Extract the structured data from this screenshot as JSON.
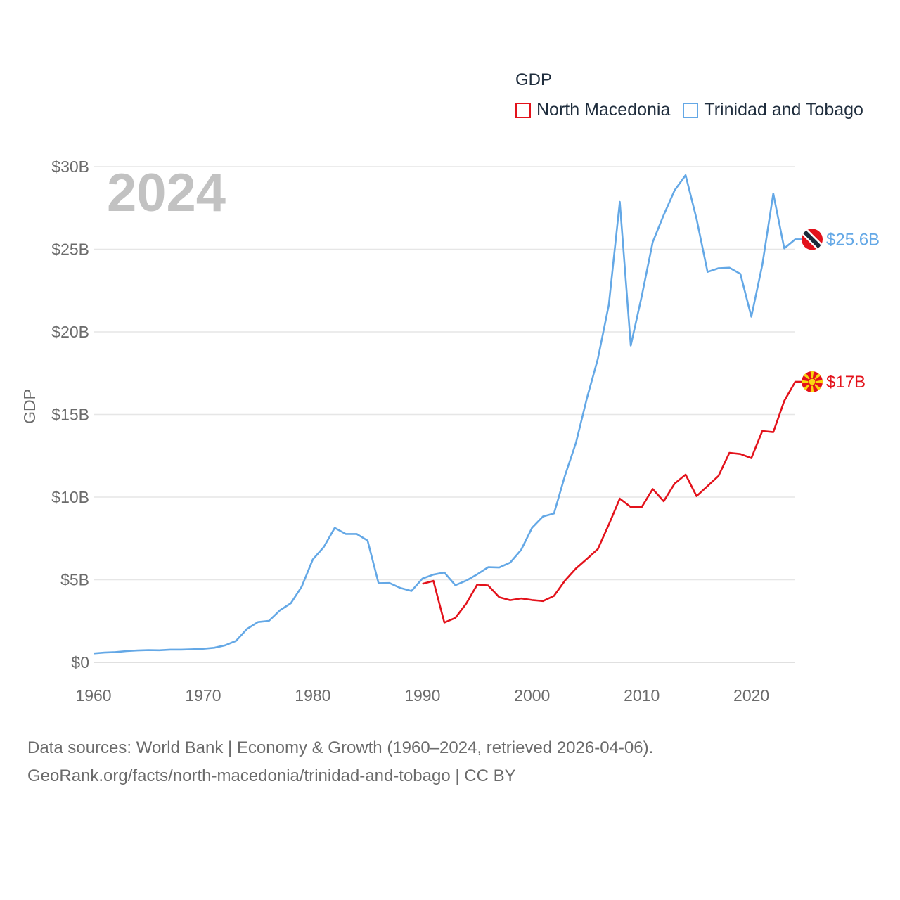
{
  "legend": {
    "title": "GDP",
    "items": [
      {
        "label": "North Macedonia",
        "color": "#e3121b"
      },
      {
        "label": "Trinidad and Tobago",
        "color": "#64a8e6"
      }
    ]
  },
  "sources": {
    "line1": "Data sources: World Bank | Economy & Growth (1960–2024, retrieved 2026-04-06).",
    "line2": "GeoRank.org/facts/north-macedonia/trinidad-and-tobago | CC BY"
  },
  "chart_data": {
    "type": "line",
    "title": "GDP",
    "year_label": "2024",
    "ylabel": "GDP",
    "xlabel": "",
    "xlim": [
      1960,
      2024
    ],
    "ylim": [
      0,
      30
    ],
    "y_unit": "billion USD",
    "x_ticks": [
      "1960",
      "1970",
      "1980",
      "1990",
      "2000",
      "2010",
      "2020"
    ],
    "y_ticks": [
      {
        "value": 0,
        "label": "$0"
      },
      {
        "value": 5,
        "label": "$5B"
      },
      {
        "value": 10,
        "label": "$10B"
      },
      {
        "value": 15,
        "label": "$15B"
      },
      {
        "value": 20,
        "label": "$20B"
      },
      {
        "value": 25,
        "label": "$25B"
      },
      {
        "value": 30,
        "label": "$30B"
      }
    ],
    "grid": true,
    "legend_position": "top-right",
    "series": [
      {
        "name": "Trinidad and Tobago",
        "color": "#64a8e6",
        "end_label": "$25.6B",
        "flag": "trinidad-and-tobago-flag-icon",
        "x": [
          1960,
          1961,
          1962,
          1963,
          1964,
          1965,
          1966,
          1967,
          1968,
          1969,
          1970,
          1971,
          1972,
          1973,
          1974,
          1975,
          1976,
          1977,
          1978,
          1979,
          1980,
          1981,
          1982,
          1983,
          1984,
          1985,
          1986,
          1987,
          1988,
          1989,
          1990,
          1991,
          1992,
          1993,
          1994,
          1995,
          1996,
          1997,
          1998,
          1999,
          2000,
          2001,
          2002,
          2003,
          2004,
          2005,
          2006,
          2007,
          2008,
          2009,
          2010,
          2011,
          2012,
          2013,
          2014,
          2015,
          2016,
          2017,
          2018,
          2019,
          2020,
          2021,
          2022,
          2023,
          2024
        ],
        "values": [
          0.54,
          0.59,
          0.62,
          0.68,
          0.72,
          0.74,
          0.73,
          0.77,
          0.77,
          0.79,
          0.82,
          0.88,
          1.03,
          1.3,
          2.02,
          2.44,
          2.51,
          3.15,
          3.58,
          4.6,
          6.23,
          6.98,
          8.14,
          7.77,
          7.77,
          7.37,
          4.79,
          4.8,
          4.5,
          4.32,
          5.07,
          5.31,
          5.44,
          4.67,
          4.95,
          5.33,
          5.76,
          5.74,
          6.04,
          6.81,
          8.15,
          8.83,
          9.01,
          11.3,
          13.28,
          15.98,
          18.37,
          21.64,
          27.87,
          19.17,
          22.16,
          25.43,
          27.07,
          28.57,
          29.48,
          26.84,
          23.63,
          23.85,
          23.88,
          23.51,
          20.92,
          24.06,
          28.37,
          25.05,
          25.6
        ]
      },
      {
        "name": "North Macedonia",
        "color": "#e3121b",
        "end_label": "$17B",
        "flag": "north-macedonia-flag-icon",
        "x": [
          1990,
          1991,
          1992,
          1993,
          1994,
          1995,
          1996,
          1997,
          1998,
          1999,
          2000,
          2001,
          2002,
          2003,
          2004,
          2005,
          2006,
          2007,
          2008,
          2009,
          2010,
          2011,
          2012,
          2013,
          2014,
          2015,
          2016,
          2017,
          2018,
          2019,
          2020,
          2021,
          2022,
          2023,
          2024
        ],
        "values": [
          4.75,
          4.93,
          2.41,
          2.69,
          3.56,
          4.71,
          4.65,
          3.94,
          3.76,
          3.87,
          3.77,
          3.71,
          4.02,
          4.95,
          5.68,
          6.26,
          6.86,
          8.34,
          9.91,
          9.4,
          9.4,
          10.49,
          9.75,
          10.82,
          11.36,
          10.06,
          10.67,
          11.28,
          12.68,
          12.61,
          12.36,
          14.0,
          13.93,
          15.82,
          16.98
        ]
      }
    ]
  }
}
